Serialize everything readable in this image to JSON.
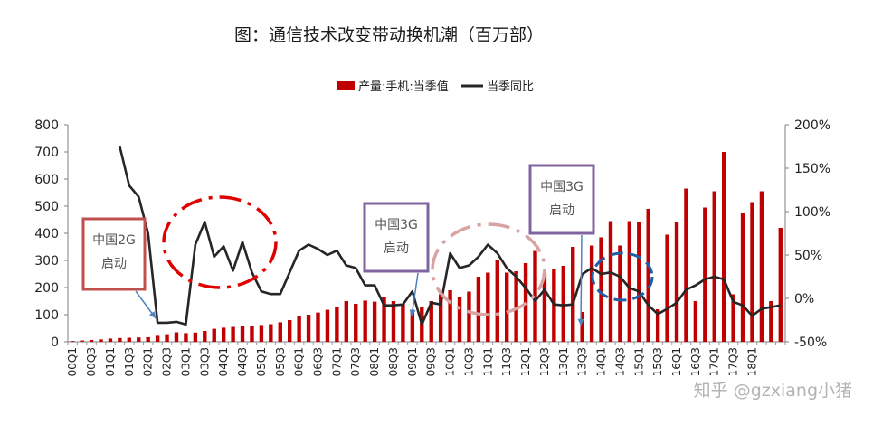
{
  "chart_data": {
    "type": "bar",
    "title": "图：通信技术改变带动换机潮（百万部）",
    "categories": [
      "00Q1",
      "00Q2",
      "00Q3",
      "00Q4",
      "01Q1",
      "01Q2",
      "01Q3",
      "01Q4",
      "02Q1",
      "02Q2",
      "02Q3",
      "02Q4",
      "03Q1",
      "03Q2",
      "03Q3",
      "03Q4",
      "04Q1",
      "04Q2",
      "04Q3",
      "04Q4",
      "05Q1",
      "05Q2",
      "05Q3",
      "05Q4",
      "06Q1",
      "06Q2",
      "06Q3",
      "06Q4",
      "07Q1",
      "07Q2",
      "07Q3",
      "07Q4",
      "08Q1",
      "08Q2",
      "08Q3",
      "08Q4",
      "09Q1",
      "09Q2",
      "09Q3",
      "09Q4",
      "10Q1",
      "10Q2",
      "10Q3",
      "10Q4",
      "11Q1",
      "11Q2",
      "11Q3",
      "11Q4",
      "12Q1",
      "12Q2",
      "12Q3",
      "12Q4",
      "13Q1",
      "13Q2",
      "13Q3",
      "13Q4",
      "14Q1",
      "14Q2",
      "14Q3",
      "14Q4",
      "15Q1",
      "15Q2",
      "15Q3",
      "15Q4",
      "16Q1",
      "16Q2",
      "16Q3",
      "16Q4",
      "17Q1",
      "17Q2",
      "17Q3",
      "17Q4",
      "18Q1",
      "18Q2",
      "18Q3",
      "18Q4"
    ],
    "x_tick_labels": [
      "00Q1",
      "00Q3",
      "01Q1",
      "01Q3",
      "02Q1",
      "02Q3",
      "03Q1",
      "03Q3",
      "04Q1",
      "04Q3",
      "05Q1",
      "05Q3",
      "06Q1",
      "06Q3",
      "07Q1",
      "07Q3",
      "08Q1",
      "08Q3",
      "09Q1",
      "09Q3",
      "10Q1",
      "10Q3",
      "11Q1",
      "11Q3",
      "12Q1",
      "12Q3",
      "13Q1",
      "13Q3",
      "14Q1",
      "14Q3",
      "15Q1",
      "15Q3",
      "16Q1",
      "16Q3",
      "17Q1",
      "17Q3",
      "18Q1"
    ],
    "series": [
      {
        "name": "产量:手机:当季值",
        "axis": "left",
        "color": "#c00000",
        "values": [
          3,
          5,
          7,
          9,
          12,
          14,
          15,
          16,
          17,
          22,
          28,
          35,
          32,
          34,
          40,
          48,
          52,
          55,
          60,
          58,
          62,
          65,
          72,
          80,
          95,
          100,
          108,
          118,
          130,
          150,
          140,
          152,
          148,
          165,
          150,
          140,
          118,
          130,
          150,
          175,
          190,
          165,
          185,
          240,
          255,
          300,
          255,
          260,
          290,
          335,
          252,
          268,
          280,
          350,
          110,
          355,
          385,
          445,
          355,
          445,
          440,
          490,
          120,
          395,
          440,
          565,
          150,
          495,
          555,
          700,
          175,
          475,
          515,
          555,
          150,
          420
        ]
      },
      {
        "name": "当季同比",
        "axis": "right",
        "color": "#262626",
        "values": [
          null,
          null,
          null,
          null,
          null,
          175,
          130,
          117,
          75,
          -28,
          -28,
          -27,
          -30,
          62,
          88,
          48,
          60,
          32,
          65,
          30,
          8,
          5,
          5,
          30,
          55,
          62,
          57,
          50,
          55,
          38,
          35,
          15,
          15,
          -8,
          -8,
          -7,
          8,
          -30,
          -5,
          -7,
          52,
          35,
          38,
          48,
          62,
          52,
          35,
          25,
          12,
          -3,
          10,
          -7,
          -8,
          -7,
          28,
          35,
          28,
          30,
          25,
          12,
          8,
          -8,
          -18,
          -12,
          -5,
          10,
          15,
          22,
          25,
          22,
          -4,
          -8,
          -20,
          -12,
          -10,
          -8
        ]
      }
    ],
    "y_left": {
      "min": 0,
      "max": 800,
      "ticks": [
        "0",
        "100",
        "200",
        "300",
        "400",
        "500",
        "600",
        "700",
        "800"
      ]
    },
    "y_right": {
      "min": -50,
      "max": 200,
      "ticks": [
        "-50%",
        "0%",
        "50%",
        "100%",
        "150%",
        "200%"
      ]
    },
    "legend": {
      "placement": "top-center",
      "items": [
        "产量:手机:当季值",
        "当季同比"
      ]
    },
    "annotations": [
      {
        "label": "中国2G\n启动",
        "box_color": "#c0504d"
      },
      {
        "label": "中国3G\n启动",
        "box_color": "#8064a2"
      },
      {
        "label": "中国3G\n启动",
        "box_color": "#8064a2"
      }
    ],
    "watermark": "知乎 @gzxiang小猪"
  }
}
